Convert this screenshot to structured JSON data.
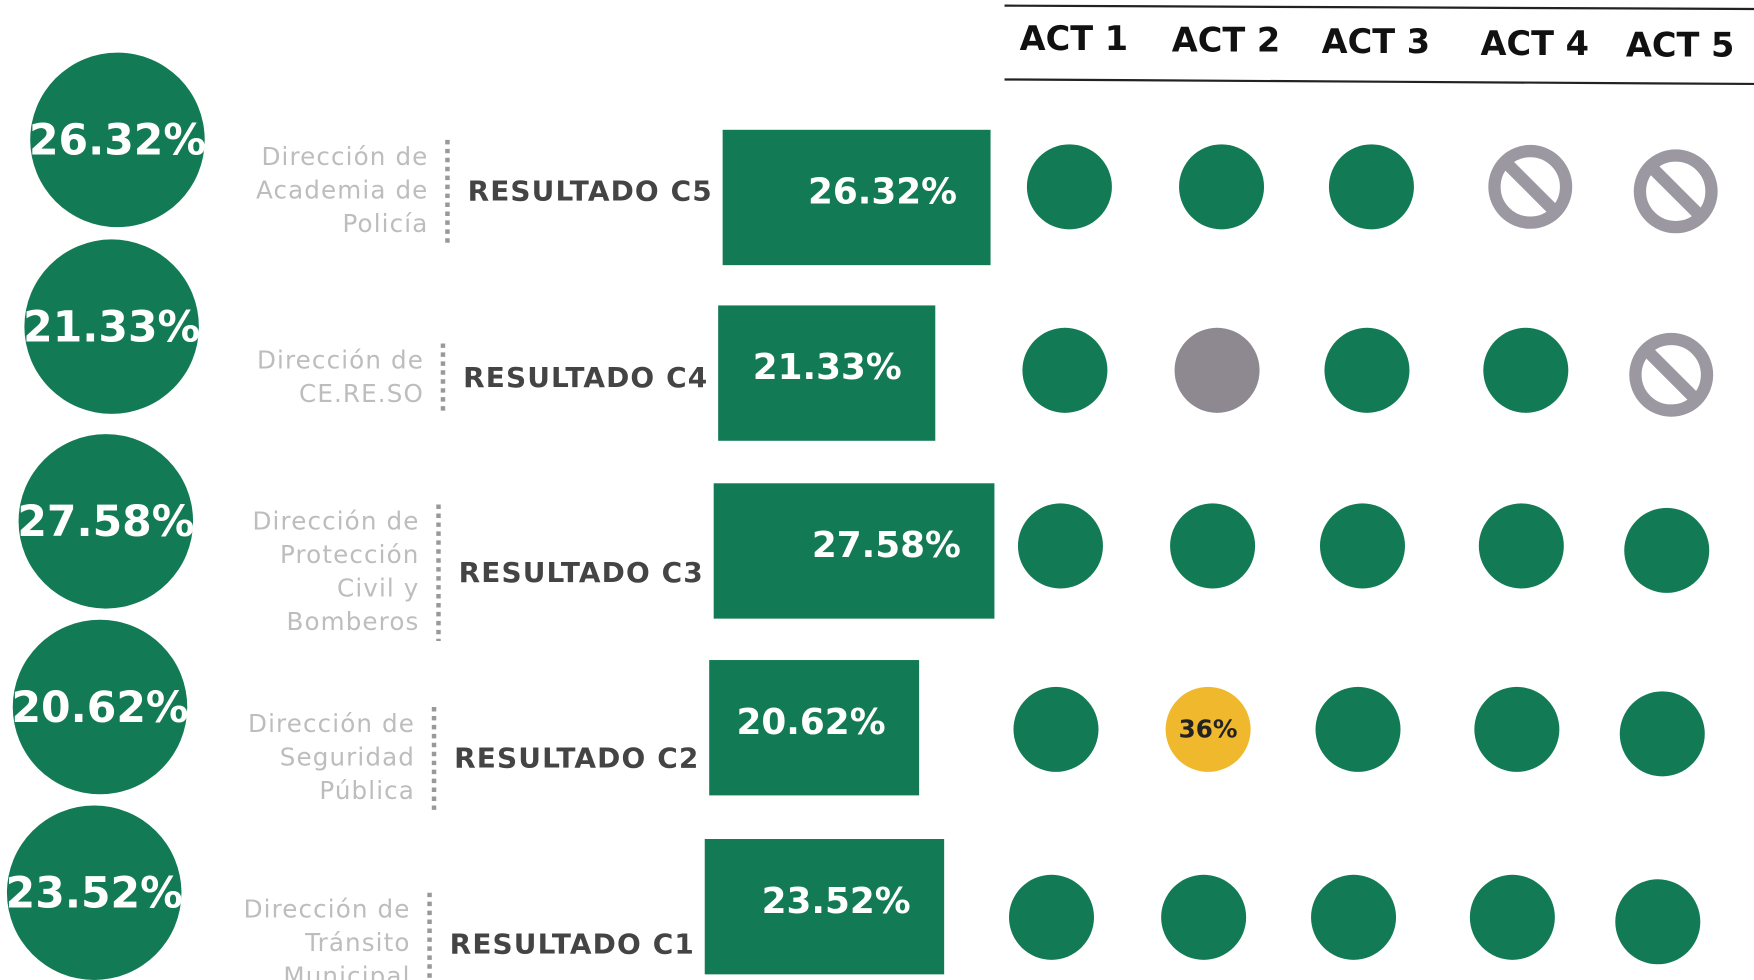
{
  "header": {
    "acts": [
      "ACT 1",
      "ACT 2",
      "ACT 3",
      "ACT 4",
      "ACT 5"
    ]
  },
  "rows": [
    {
      "department": [
        "Dirección de",
        "Academia de",
        "Policía"
      ],
      "result": "RESULTADO C5",
      "value": 26.32,
      "value_label": "26.32%",
      "acts": [
        {
          "color": "#137a56"
        },
        {
          "color": "#137a56"
        },
        {
          "color": "#137a56"
        },
        {
          "color": "#9b98a1",
          "blocked": true
        },
        {
          "color": "#9b98a1",
          "blocked": true
        }
      ]
    },
    {
      "department": [
        "Dirección de",
        "CE.RE.SO"
      ],
      "result": "RESULTADO C4",
      "value": 21.33,
      "value_label": "21.33%",
      "acts": [
        {
          "color": "#137a56"
        },
        {
          "color": "#8e8990"
        },
        {
          "color": "#137a56"
        },
        {
          "color": "#137a56"
        },
        {
          "color": "#9b98a1",
          "blocked": true
        }
      ]
    },
    {
      "department": [
        "Dirección de",
        "Protección",
        "Civil y",
        "Bomberos"
      ],
      "result": "RESULTADO C3",
      "value": 27.58,
      "value_label": "27.58%",
      "acts": [
        {
          "color": "#137a56"
        },
        {
          "color": "#137a56"
        },
        {
          "color": "#137a56"
        },
        {
          "color": "#137a56"
        },
        {
          "color": "#137a56"
        }
      ]
    },
    {
      "department": [
        "Dirección de",
        "Seguridad",
        "Pública"
      ],
      "result": "RESULTADO C2",
      "value": 20.62,
      "value_label": "20.62%",
      "acts": [
        {
          "color": "#137a56"
        },
        {
          "color": "#f0b82c",
          "label": "36%"
        },
        {
          "color": "#137a56"
        },
        {
          "color": "#137a56"
        },
        {
          "color": "#137a56"
        }
      ]
    },
    {
      "department": [
        "Dirección de",
        "Tránsito",
        "Municipal"
      ],
      "result": "RESULTADO C1",
      "value": 23.52,
      "value_label": "23.52%",
      "acts": [
        {
          "color": "#137a56"
        },
        {
          "color": "#137a56"
        },
        {
          "color": "#137a56"
        },
        {
          "color": "#137a56"
        },
        {
          "color": "#137a56"
        }
      ]
    }
  ]
}
